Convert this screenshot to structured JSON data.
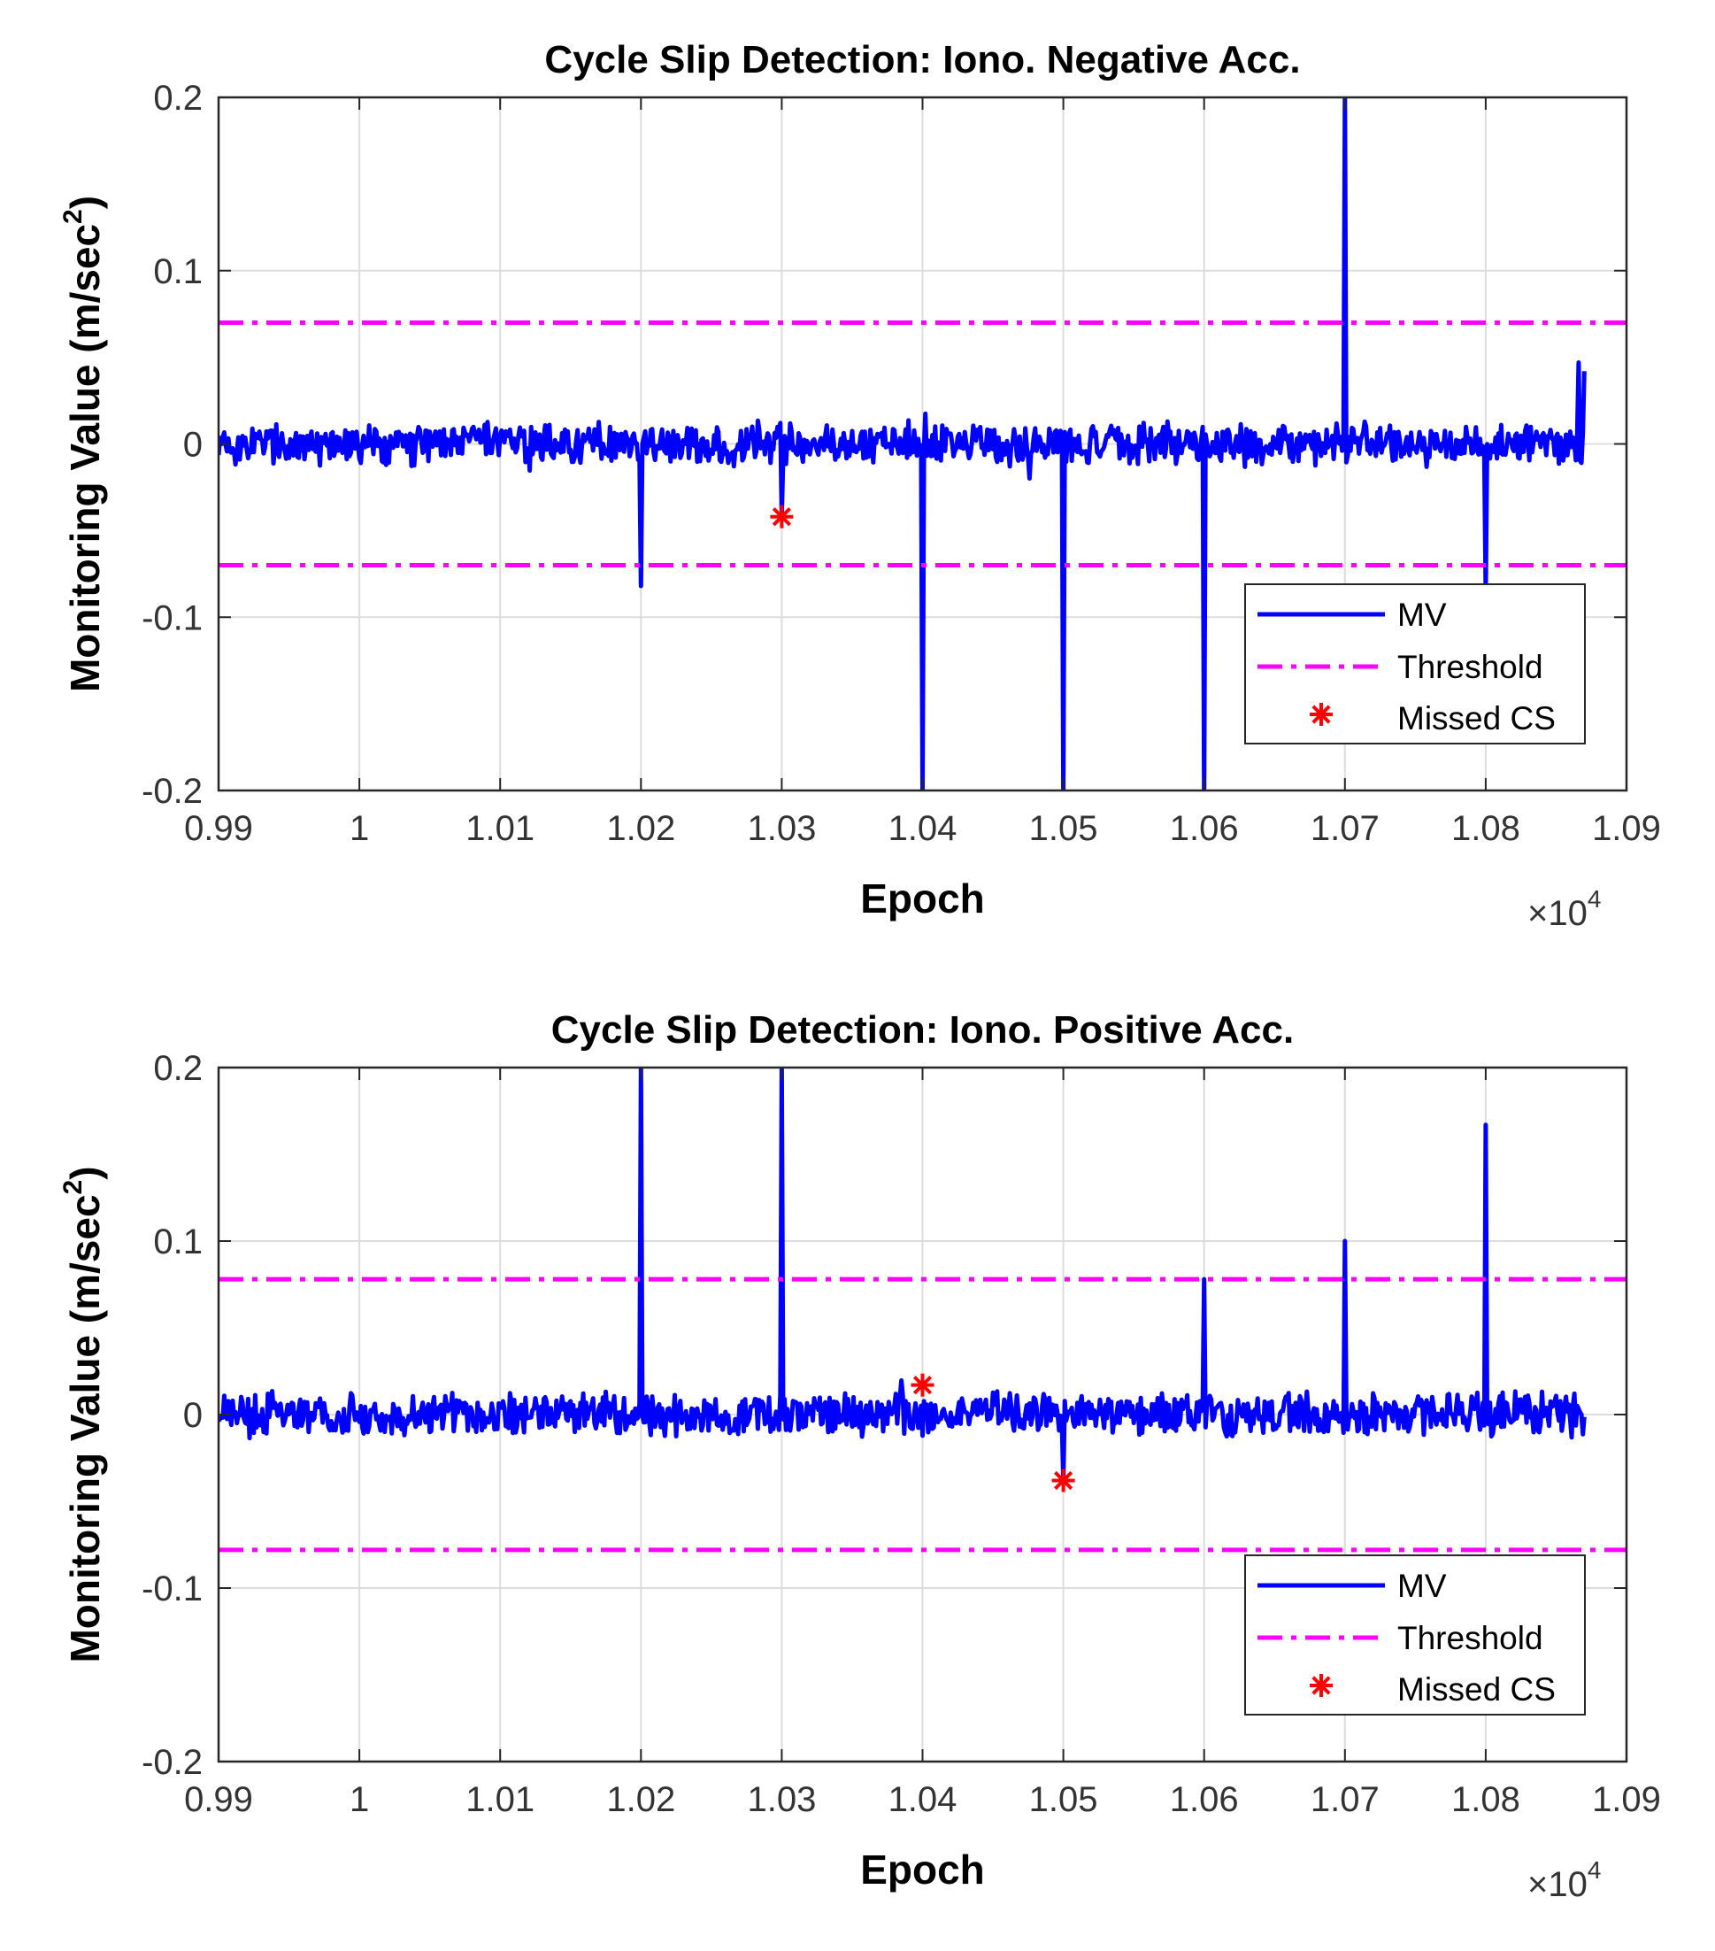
{
  "colors": {
    "mv": "#0000ff",
    "threshold": "#ff00ff",
    "missed": "#ff0000",
    "grid": "#dcdcdc",
    "axis": "#262626"
  },
  "chart_data": [
    {
      "type": "line",
      "title": "Cycle Slip Detection: Iono. Negative Acc.",
      "xlabel": "Epoch",
      "ylabel": "Monitoring Value (m/sec",
      "ylabel_sup": "2",
      "ylabel_close": ")",
      "x_multiplier": "×10",
      "x_multiplier_exp": "4",
      "xlim": [
        9900,
        10900
      ],
      "ylim": [
        -0.2,
        0.2
      ],
      "grid": true,
      "x_ticks": [
        9900,
        10000,
        10100,
        10200,
        10300,
        10400,
        10500,
        10600,
        10700,
        10800,
        10900
      ],
      "x_tick_labels": [
        "0.99",
        "1",
        "1.01",
        "1.02",
        "1.03",
        "1.04",
        "1.05",
        "1.06",
        "1.07",
        "1.08",
        "1.09"
      ],
      "y_ticks": [
        0.2,
        0.1,
        0,
        -0.1,
        -0.2
      ],
      "y_tick_labels": [
        "0.2",
        "0.1",
        "0",
        "-0.1",
        "-0.2"
      ],
      "legend": {
        "position": "bottom-right",
        "entries": [
          "MV",
          "Threshold",
          "Missed CS"
        ]
      },
      "series": [
        {
          "name": "MV",
          "style": "solid",
          "x_range": [
            9900,
            10870
          ],
          "noise_amplitude": 0.012,
          "spikes": [
            {
              "x": 10200,
              "y": -0.082
            },
            {
              "x": 10300,
              "y": -0.042
            },
            {
              "x": 10400,
              "y": -0.2
            },
            {
              "x": 10500,
              "y": -0.2
            },
            {
              "x": 10600,
              "y": -0.2
            },
            {
              "x": 10700,
              "y": 0.2
            },
            {
              "x": 10800,
              "y": -0.085
            },
            {
              "x": 10866,
              "y": 0.047
            },
            {
              "x": 10870,
              "y": 0.042
            }
          ]
        },
        {
          "name": "Threshold",
          "style": "dashdot",
          "values": [
            0.07,
            -0.07
          ]
        },
        {
          "name": "Missed CS",
          "style": "marker",
          "points": [
            {
              "x": 10300,
              "y": -0.042
            }
          ]
        }
      ]
    },
    {
      "type": "line",
      "title": "Cycle Slip Detection: Iono. Positive Acc.",
      "xlabel": "Epoch",
      "ylabel": "Monitoring Value (m/sec",
      "ylabel_sup": "2",
      "ylabel_close": ")",
      "x_multiplier": "×10",
      "x_multiplier_exp": "4",
      "xlim": [
        9900,
        10900
      ],
      "ylim": [
        -0.2,
        0.2
      ],
      "grid": true,
      "x_ticks": [
        9900,
        10000,
        10100,
        10200,
        10300,
        10400,
        10500,
        10600,
        10700,
        10800,
        10900
      ],
      "x_tick_labels": [
        "0.99",
        "1",
        "1.01",
        "1.02",
        "1.03",
        "1.04",
        "1.05",
        "1.06",
        "1.07",
        "1.08",
        "1.09"
      ],
      "y_ticks": [
        0.2,
        0.1,
        0,
        -0.1,
        -0.2
      ],
      "y_tick_labels": [
        "0.2",
        "0.1",
        "0",
        "-0.1",
        "-0.2"
      ],
      "legend": {
        "position": "bottom-right",
        "entries": [
          "MV",
          "Threshold",
          "Missed CS"
        ]
      },
      "series": [
        {
          "name": "MV",
          "style": "solid",
          "x_range": [
            9900,
            10870
          ],
          "noise_amplitude": 0.012,
          "spikes": [
            {
              "x": 10200,
              "y": 0.2
            },
            {
              "x": 10300,
              "y": 0.2
            },
            {
              "x": 10500,
              "y": -0.038
            },
            {
              "x": 10600,
              "y": 0.078
            },
            {
              "x": 10700,
              "y": 0.1
            },
            {
              "x": 10800,
              "y": 0.167
            }
          ]
        },
        {
          "name": "Threshold",
          "style": "dashdot",
          "values": [
            0.078,
            -0.078
          ]
        },
        {
          "name": "Missed CS",
          "style": "marker",
          "points": [
            {
              "x": 10400,
              "y": 0.017
            },
            {
              "x": 10500,
              "y": -0.038
            }
          ]
        }
      ]
    }
  ]
}
